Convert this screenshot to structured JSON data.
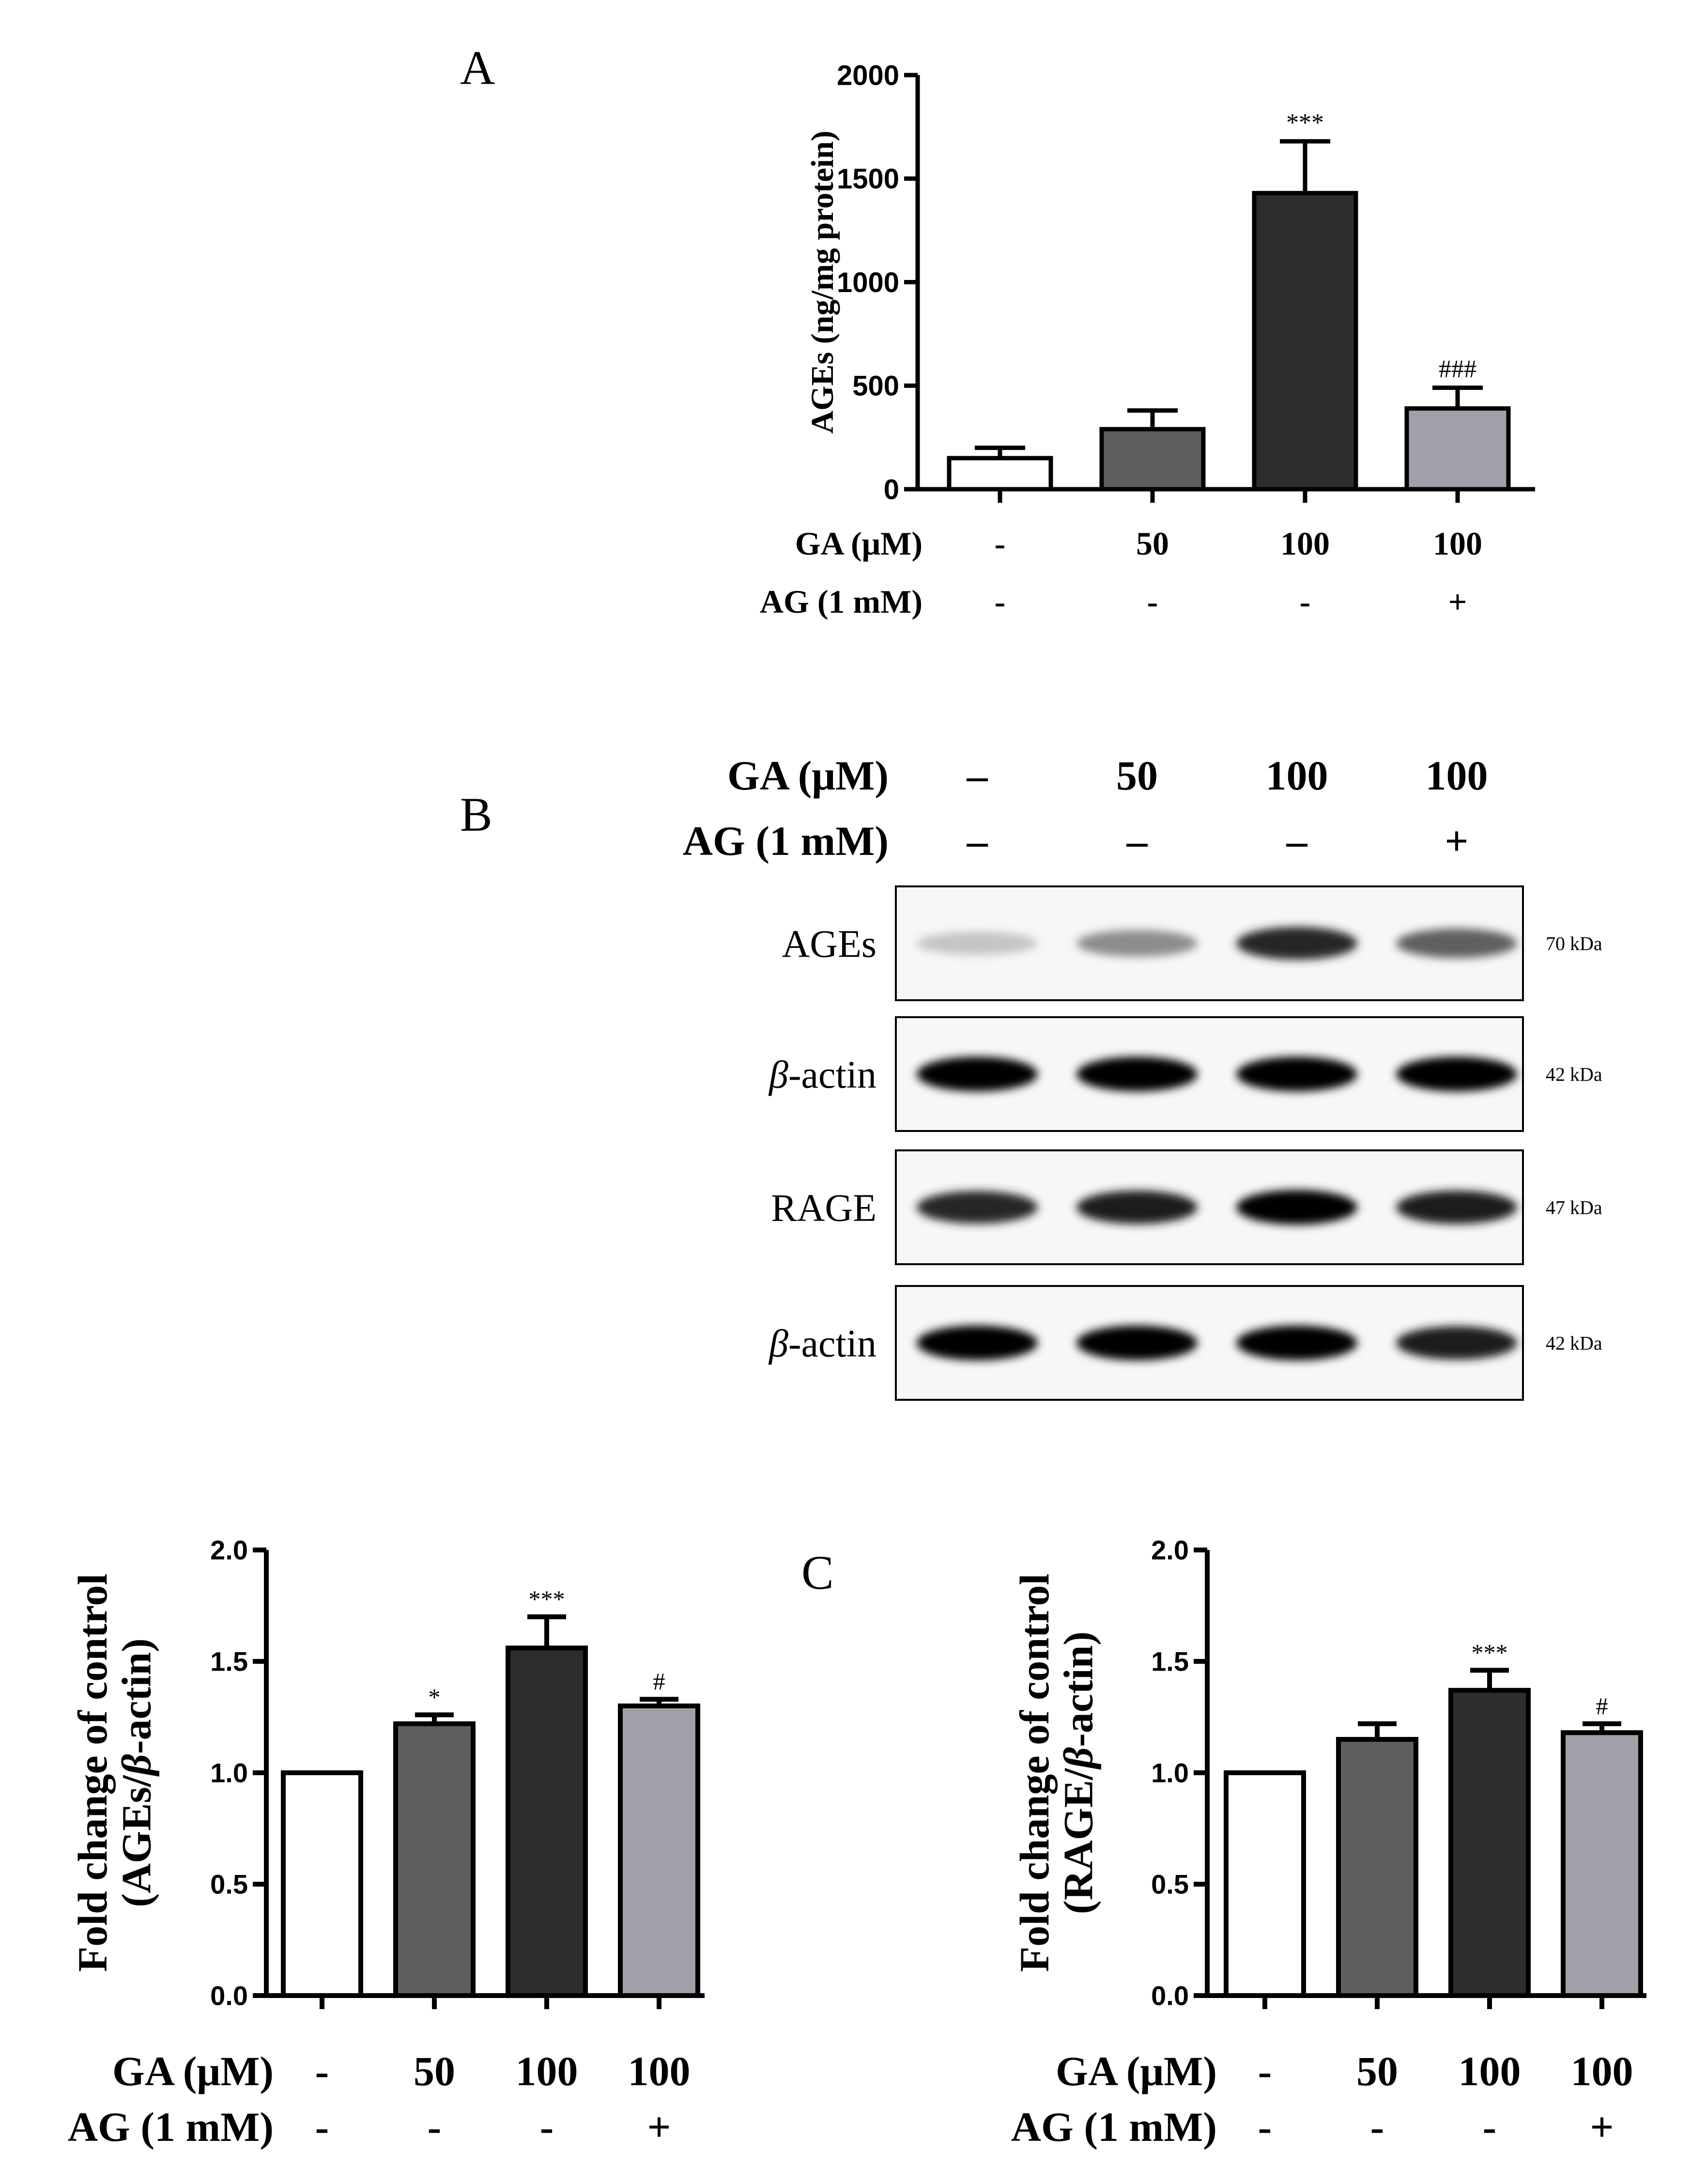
{
  "figure": {
    "panel_labels": {
      "a": "A",
      "b": "B",
      "c": "C"
    },
    "conditions": {
      "ga_label": "GA (μM)",
      "ag_label": "AG (1 mM)",
      "ga_values": [
        "-",
        "50",
        "100",
        "100"
      ],
      "ag_values": [
        "-",
        "-",
        "-",
        "+"
      ]
    },
    "blot": {
      "ga_label": "GA (μM)",
      "ag_label": "AG (1 mM)",
      "ga_values": [
        "–",
        "50",
        "100",
        "100"
      ],
      "ag_values": [
        "–",
        "–",
        "–",
        "+"
      ],
      "rows": [
        {
          "name_prefix": "",
          "name_rest": "AGEs",
          "kda": "70 kDa",
          "intensities": [
            0.15,
            0.4,
            0.85,
            0.6
          ]
        },
        {
          "name_prefix": "β",
          "name_rest": "-actin",
          "kda": "42 kDa",
          "intensities": [
            1,
            1,
            1,
            1
          ]
        },
        {
          "name_prefix": "",
          "name_rest": "RAGE",
          "kda": "47 kDa",
          "intensities": [
            0.85,
            0.9,
            1,
            0.9
          ]
        },
        {
          "name_prefix": "β",
          "name_rest": "-actin",
          "kda": "42 kDa",
          "intensities": [
            1,
            1,
            1,
            0.9
          ]
        }
      ]
    }
  },
  "chart_data": [
    {
      "id": "ages-elisa",
      "type": "bar",
      "categories": [
        "-/-",
        "50/-",
        "100/-",
        "100/+"
      ],
      "values": [
        150,
        290,
        1430,
        390
      ],
      "errors": [
        50,
        90,
        250,
        100
      ],
      "significance": [
        "",
        "",
        "***",
        "###"
      ],
      "bar_colors": [
        "#ffffff",
        "#5e5e5e",
        "#2d2d2d",
        "#a0a0a8"
      ],
      "ylabel": "AGEs (ng/mg protein)",
      "ylim": [
        0,
        2000
      ],
      "yticks": [
        "0",
        "500",
        "1000",
        "1500",
        "2000"
      ]
    },
    {
      "id": "ages-fold",
      "type": "bar",
      "categories": [
        "-/-",
        "50/-",
        "100/-",
        "100/+"
      ],
      "values": [
        1.0,
        1.22,
        1.56,
        1.3
      ],
      "errors": [
        0,
        0.04,
        0.14,
        0.03
      ],
      "significance": [
        "",
        "*",
        "***",
        "#"
      ],
      "bar_colors": [
        "#ffffff",
        "#5e5e5e",
        "#2d2d2d",
        "#a0a0a8"
      ],
      "ylabel_line1": "Fold change of control",
      "ylabel_line2_open": "(AGEs/",
      "ylabel_line2_beta": "β",
      "ylabel_line2_close": "-actin)",
      "ylim": [
        0,
        2.0
      ],
      "yticks": [
        "0.0",
        "0.5",
        "1.0",
        "1.5",
        "2.0"
      ]
    },
    {
      "id": "rage-fold",
      "type": "bar",
      "categories": [
        "-/-",
        "50/-",
        "100/-",
        "100/+"
      ],
      "values": [
        1.0,
        1.15,
        1.37,
        1.18
      ],
      "errors": [
        0,
        0.07,
        0.09,
        0.04
      ],
      "significance": [
        "",
        "",
        "***",
        "#"
      ],
      "bar_colors": [
        "#ffffff",
        "#5e5e5e",
        "#2d2d2d",
        "#a0a0a8"
      ],
      "ylabel_line1": "Fold change of control",
      "ylabel_line2_open": "(RAGE/",
      "ylabel_line2_beta": "β",
      "ylabel_line2_close": "-actin)",
      "ylim": [
        0,
        2.0
      ],
      "yticks": [
        "0.0",
        "0.5",
        "1.0",
        "1.5",
        "2.0"
      ]
    }
  ]
}
